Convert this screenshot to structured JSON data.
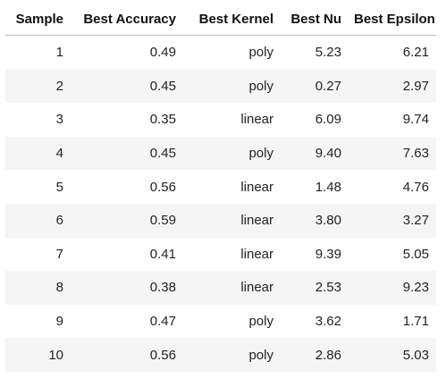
{
  "table": {
    "headers": [
      "Sample",
      "Best Accuracy",
      "Best Kernel",
      "Best Nu",
      "Best Epsilon"
    ],
    "rows": [
      [
        "1",
        "0.49",
        "poly",
        "5.23",
        "6.21"
      ],
      [
        "2",
        "0.45",
        "poly",
        "0.27",
        "2.97"
      ],
      [
        "3",
        "0.35",
        "linear",
        "6.09",
        "9.74"
      ],
      [
        "4",
        "0.45",
        "poly",
        "9.40",
        "7.63"
      ],
      [
        "5",
        "0.56",
        "linear",
        "1.48",
        "4.76"
      ],
      [
        "6",
        "0.59",
        "linear",
        "3.80",
        "3.27"
      ],
      [
        "7",
        "0.41",
        "linear",
        "9.39",
        "5.05"
      ],
      [
        "8",
        "0.38",
        "linear",
        "2.53",
        "9.23"
      ],
      [
        "9",
        "0.47",
        "poly",
        "3.62",
        "1.71"
      ],
      [
        "10",
        "0.56",
        "poly",
        "2.86",
        "5.03"
      ]
    ]
  },
  "colors": {
    "stripe": "#f5f5f5",
    "header_border": "#bdbdbd"
  }
}
